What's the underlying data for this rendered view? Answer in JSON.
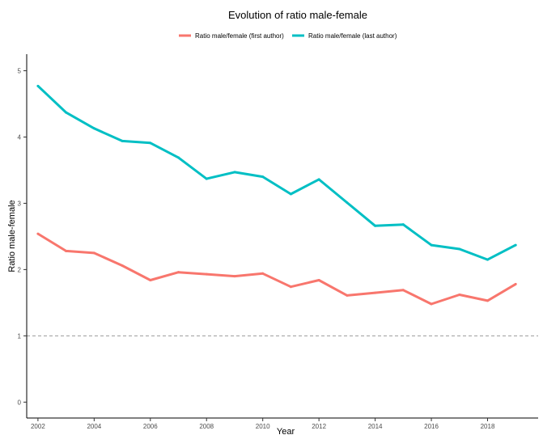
{
  "chart_data": {
    "type": "line",
    "title": "Evolution of ratio male-female",
    "xlabel": "Year",
    "ylabel": "Ratio male-female",
    "x": [
      2002,
      2003,
      2004,
      2005,
      2006,
      2007,
      2008,
      2009,
      2010,
      2011,
      2012,
      2013,
      2014,
      2015,
      2016,
      2017,
      2018,
      2019
    ],
    "series": [
      {
        "name": "Ratio male/female (first author)",
        "color": "#F8766D",
        "values": [
          2.54,
          2.28,
          2.25,
          2.06,
          1.84,
          1.96,
          1.93,
          1.9,
          1.94,
          1.74,
          1.84,
          1.61,
          1.65,
          1.69,
          1.48,
          1.62,
          1.53,
          1.78
        ]
      },
      {
        "name": "Ratio male/female (last author)",
        "color": "#00BFC4",
        "values": [
          4.77,
          4.37,
          4.13,
          3.94,
          3.91,
          3.69,
          3.37,
          3.47,
          3.4,
          3.14,
          3.36,
          3.01,
          2.66,
          2.68,
          2.37,
          2.31,
          2.15,
          2.37
        ]
      }
    ],
    "xlim": [
      2001.6,
      2019.8
    ],
    "ylim": [
      -0.24,
      5.25
    ],
    "x_ticks": [
      2002,
      2004,
      2006,
      2008,
      2010,
      2012,
      2014,
      2016,
      2018
    ],
    "y_ticks": [
      0,
      1,
      2,
      3,
      4,
      5
    ],
    "reference_line": {
      "y": 1,
      "style": "dashed",
      "color": "#999999"
    },
    "grid": false,
    "legend_position": "top"
  }
}
